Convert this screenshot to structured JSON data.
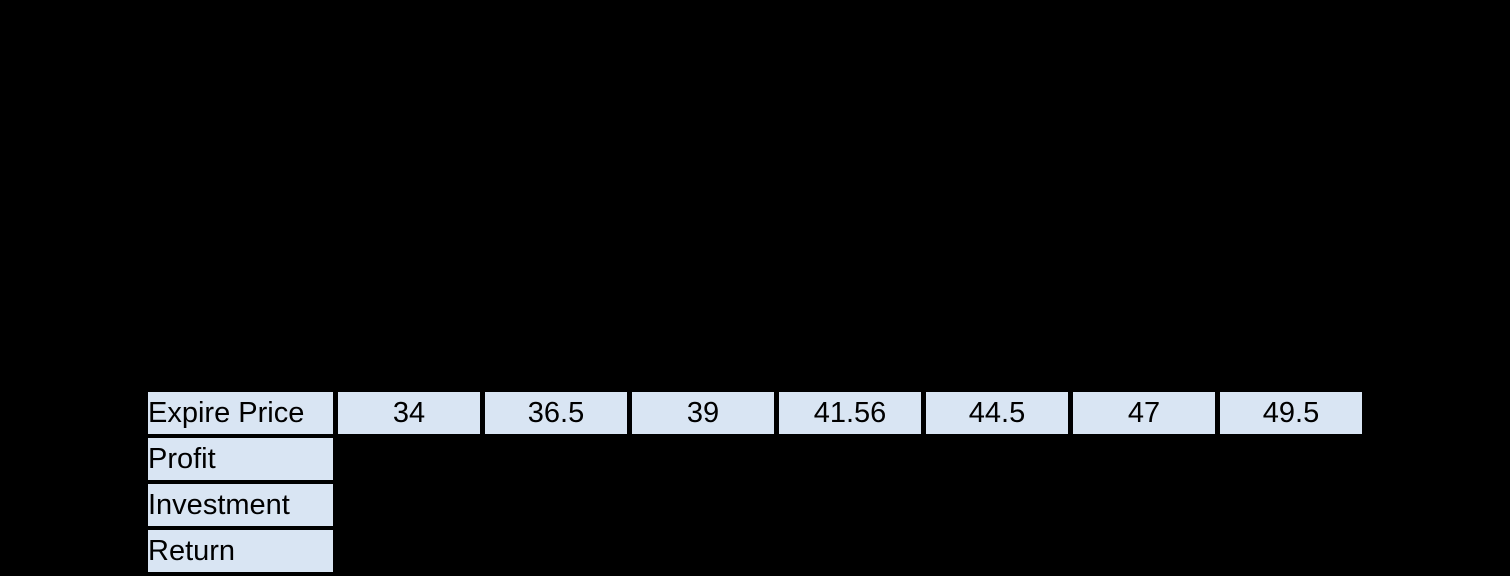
{
  "canvas": {
    "background_color": "#000000"
  },
  "table": {
    "cell_fill_color": "#d9e5f3",
    "separator_color": "#000000",
    "text_color": "#000000",
    "header_row": {
      "label": "Expire Price",
      "values": [
        "34",
        "36.5",
        "39",
        "41.56",
        "44.5",
        "47",
        "49.5"
      ]
    },
    "rows": [
      {
        "label": "Profit"
      },
      {
        "label": "Investment"
      },
      {
        "label": "Return"
      }
    ]
  }
}
